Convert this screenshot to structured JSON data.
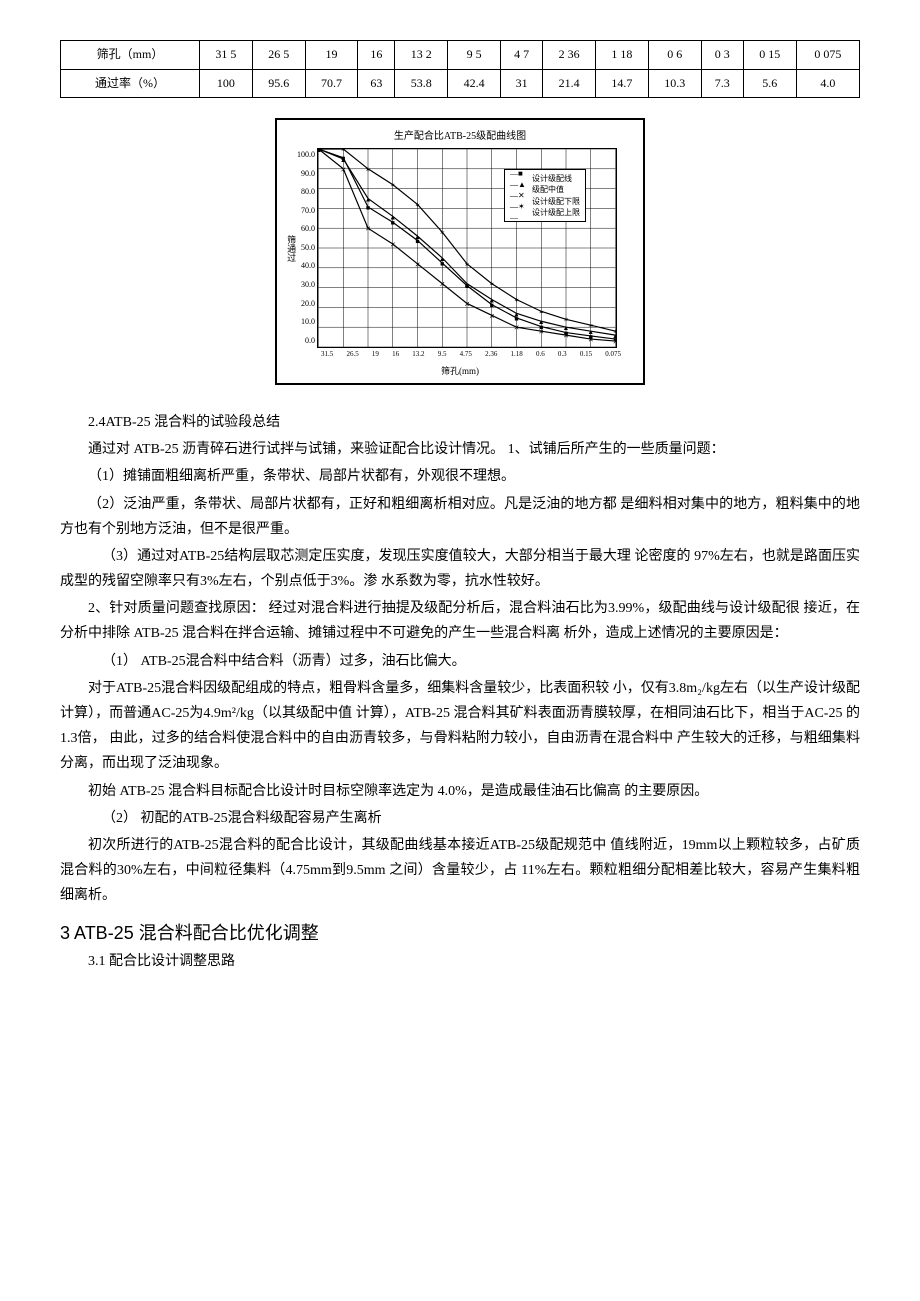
{
  "table": {
    "row1_label": "筛孔（mm）",
    "row2_label": "通过率（%）",
    "sieve_sizes": [
      "31 5",
      "26 5",
      "19",
      "16",
      "13 2",
      "9 5",
      "4 7",
      "2 36",
      "1 18",
      "0 6",
      "0 3",
      "0 15",
      "0 075"
    ],
    "pass_rates": [
      "100",
      "95.6",
      "70.7",
      "63",
      "53.8",
      "42.4",
      "31",
      "21.4",
      "14.7",
      "10.3",
      "7.3",
      "5.6",
      "4.0"
    ]
  },
  "chart": {
    "title": "生产配合比ATB-25级配曲线图",
    "y_title": "筛通过",
    "x_title": "筛孔(mm)",
    "y_ticks": [
      "0.0",
      "10.0",
      "20.0",
      "30.0",
      "40.0",
      "50.0",
      "60.0",
      "70.0",
      "80.0",
      "90.0",
      "100.0"
    ],
    "x_ticks": [
      "31.5",
      "26.5",
      "19",
      "16",
      "13.2",
      "9.5",
      "4.75",
      "2.36",
      "1.18",
      "0.6",
      "0.3",
      "0.15",
      "0.075"
    ],
    "legend_items": [
      "设计级配线",
      "级配中值",
      "设计级配下限",
      "设计级配上限"
    ],
    "ylim": [
      0,
      100
    ],
    "grid_color": "#000000",
    "bg_color": "#ffffff",
    "series": {
      "design": [
        100,
        95.6,
        70.7,
        63,
        53.8,
        42.4,
        31,
        21.4,
        14.7,
        10.3,
        7.3,
        5.6,
        4.0
      ],
      "mid": [
        100,
        95,
        75,
        66,
        56,
        45,
        32,
        24,
        17,
        13,
        10,
        8,
        6
      ],
      "lower": [
        100,
        90,
        60,
        52,
        42,
        32,
        22,
        16,
        10,
        8,
        6,
        4,
        3
      ],
      "upper": [
        100,
        100,
        90,
        82,
        72,
        58,
        42,
        32,
        24,
        18,
        14,
        11,
        8
      ]
    },
    "markers": [
      "square",
      "triangle",
      "x",
      "star"
    ],
    "line_color": "#000000"
  },
  "body": {
    "sec24": "2.4ATB-25 混合料的试验段总结",
    "p1": "通过对  ATB-25 沥青碎石进行试拌与试铺，来验证配合比设计情况。  1、试铺后所产生的一些质量问题：",
    "p2": "（1）摊铺面粗细离析严重，条带状、局部片状都有，外观很不理想。",
    "p3": "（2）泛油严重，条带状、局部片状都有，正好和粗细离析相对应。凡是泛油的地方都  是细料相对集中的地方，粗料集中的地方也有个别地方泛油，但不是很严重。",
    "p4": "（3）通过对ATB-25结构层取芯测定压实度，发现压实度值较大，大部分相当于最大理     论密度的  97%左右，也就是路面压实成型的残留空隙率只有3%左右，个别点低于3%。渗  水系数为零，抗水性较好。",
    "p5": "2、针对质量问题查找原因：  经过对混合料进行抽提及级配分析后，混合料油石比为3.99%，级配曲线与设计级配很  接近，在分析中排除 ATB-25 混合料在拌合运输、摊铺过程中不可避免的产生一些混合料离  析外，造成上述情况的主要原因是：",
    "p6": "（1）     ATB-25混合料中结合料（沥青）过多，油石比偏大。",
    "p7": "对于ATB-25混合料因级配组成的特点，粗骨料含量多，细集料含量较少，比表面积较  小，仅有3.8m₂/kg左右（以生产设计级配计算），而普通AC-25为4.9m²/kg（以其级配中值  计算），ATB-25 混合料其矿料表面沥青膜较厚，在相同油石比下，相当于AC-25 的  1.3倍，  由此，过多的结合料使混合料中的自由沥青较多，与骨料粘附力较小，自由沥青在混合料中  产生较大的迁移，与粗细集料分离，而出现了泛油现象。",
    "p8": "初始  ATB-25 混合料目标配合比设计时目标空隙率选定为  4.0%，是造成最佳油石比偏高  的主要原因。",
    "p9": "（2）     初配的ATB-25混合料级配容易产生离析",
    "p10": "初次所进行的ATB-25混合料的配合比设计，其级配曲线基本接近ATB-25级配规范中     值线附近，19mm以上颗粒较多，占矿质混合料的30%左右，中间粒径集料（4.75mm到9.5mm 之间）含量较少，占 11%左右。颗粒粗细分配相差比较大，容易产生集料粗细离析。",
    "h3": "3   ATB-25 混合料配合比优化调整",
    "sub31": "3.1 配合比设计调整思路"
  }
}
